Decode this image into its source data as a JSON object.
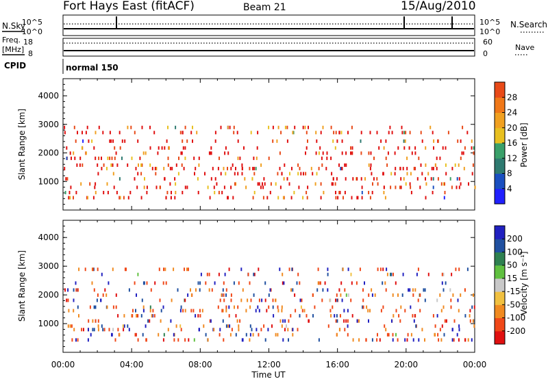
{
  "header": {
    "title": "Fort Hays East (fitACF)",
    "beam": "Beam 21",
    "date": "15/Aug/2010"
  },
  "params": {
    "nsky_label": "N.Sky",
    "nsearch_label": "N.Search",
    "nsky_ticks": [
      "10^5",
      "10^0"
    ],
    "nsearch_ticks": [
      "10^5",
      "10^0"
    ],
    "freq_label_1": "Freq.",
    "freq_label_2": "[MHz]",
    "freq_ticks": [
      "18",
      "8"
    ],
    "nave_label": "Nave",
    "nave_ticks": [
      "60",
      "0"
    ],
    "cpid_label": "CPID",
    "cpid_value": "normal 150"
  },
  "colors": {
    "power_scale": [
      "#2020ff",
      "#1a4fc0",
      "#2e7a70",
      "#3aa06a",
      "#e8c020",
      "#f0a020",
      "#f07818",
      "#e84a18",
      "#e01010"
    ],
    "velocity_scale": [
      "#e01010",
      "#f04818",
      "#f08a20",
      "#f0c040",
      "#c8c8c8",
      "#60c040",
      "#2e8050",
      "#2050a0",
      "#2020c0"
    ]
  },
  "chart_data": [
    {
      "type": "heatmap",
      "name": "power",
      "ylabel": "Slant Range [km]",
      "yticks": [
        "1000",
        "2000",
        "3000",
        "4000"
      ],
      "ylim": [
        0,
        4600
      ],
      "colorbar_label": "Power [dB]",
      "colorbar_ticks": [
        "4",
        "8",
        "12",
        "16",
        "20",
        "24",
        "28"
      ],
      "colorbar_range": [
        0,
        32
      ]
    },
    {
      "type": "heatmap",
      "name": "velocity",
      "ylabel": "Slant Range [km]",
      "yticks": [
        "1000",
        "2000",
        "3000",
        "4000"
      ],
      "ylim": [
        0,
        4600
      ],
      "colorbar_label": "Velocity [m s⁻¹]",
      "colorbar_ticks": [
        "-200",
        "-100",
        "-50",
        "-15",
        "15",
        "50",
        "100",
        "200"
      ],
      "xlabel": "Time UT",
      "xticks": [
        "00:00",
        "04:00",
        "08:00",
        "12:00",
        "16:00",
        "20:00",
        "00:00"
      ],
      "xlim_hours": [
        0,
        24
      ]
    }
  ],
  "scatter": {
    "ranges_km": [
      420,
      600,
      780,
      900,
      1080,
      1260,
      1440,
      1560,
      1800,
      1980,
      2160,
      2400,
      2700,
      2880
    ],
    "n_points": 520
  }
}
